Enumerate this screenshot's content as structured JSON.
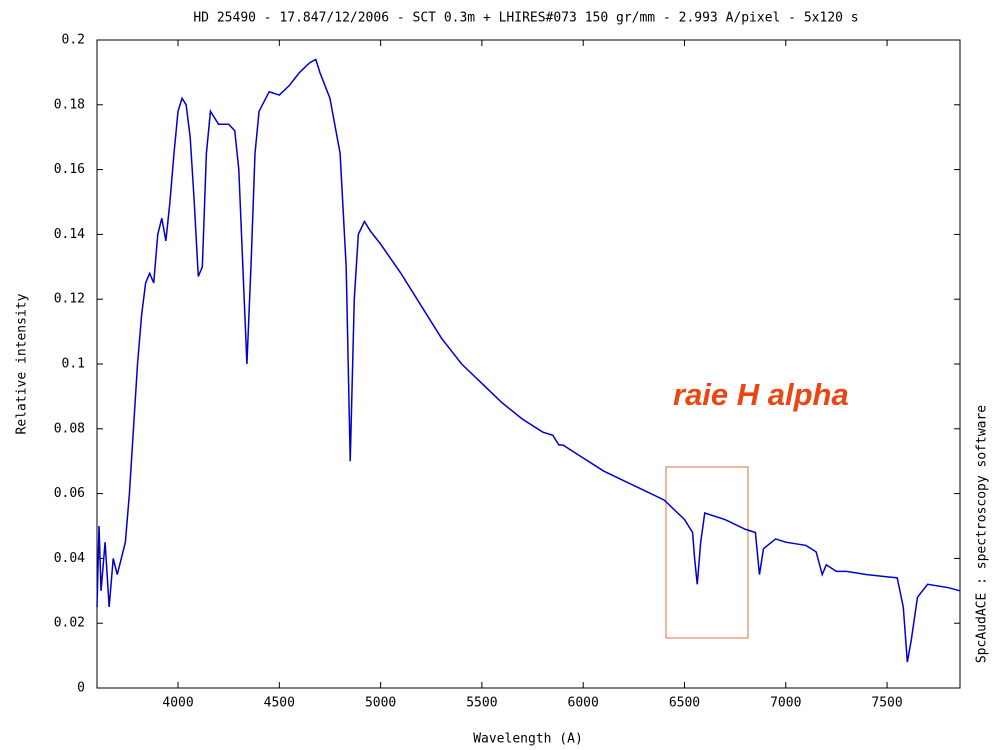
{
  "chart_data": {
    "type": "line",
    "title": "HD 25490 - 17.847/12/2006 - SCT 0.3m + LHIRES#073 150 gr/mm - 2.993 A/pixel - 5x120 s",
    "x_label": "Wavelength (A)",
    "y_label": "Relative intensity",
    "side_text": "SpcAudACE : spectroscopy software",
    "annotation": "raie H alpha",
    "color": "#0000cc",
    "x": [
      3600,
      3610,
      3620,
      3640,
      3660,
      3680,
      3700,
      3720,
      3740,
      3760,
      3780,
      3800,
      3820,
      3840,
      3860,
      3880,
      3900,
      3920,
      3940,
      3960,
      3980,
      4000,
      4020,
      4040,
      4060,
      4080,
      4100,
      4120,
      4140,
      4160,
      4180,
      4200,
      4250,
      4280,
      4300,
      4320,
      4340,
      4360,
      4380,
      4400,
      4450,
      4500,
      4550,
      4600,
      4650,
      4680,
      4700,
      4750,
      4800,
      4830,
      4850,
      4870,
      4890,
      4920,
      4950,
      5000,
      5100,
      5200,
      5300,
      5350,
      5400,
      5500,
      5600,
      5700,
      5800,
      5850,
      5880,
      5900,
      6000,
      6100,
      6200,
      6300,
      6400,
      6500,
      6540,
      6550,
      6563,
      6580,
      6600,
      6700,
      6800,
      6850,
      6870,
      6890,
      6950,
      7000,
      7100,
      7150,
      7180,
      7200,
      7250,
      7300,
      7400,
      7550,
      7580,
      7600,
      7620,
      7650,
      7700,
      7800,
      7860
    ],
    "values": [
      0.025,
      0.05,
      0.03,
      0.045,
      0.025,
      0.04,
      0.035,
      0.04,
      0.045,
      0.06,
      0.08,
      0.1,
      0.115,
      0.125,
      0.128,
      0.125,
      0.14,
      0.145,
      0.138,
      0.15,
      0.165,
      0.178,
      0.182,
      0.18,
      0.17,
      0.15,
      0.127,
      0.13,
      0.165,
      0.178,
      0.176,
      0.174,
      0.174,
      0.172,
      0.16,
      0.13,
      0.1,
      0.13,
      0.165,
      0.178,
      0.184,
      0.183,
      0.186,
      0.19,
      0.193,
      0.194,
      0.19,
      0.182,
      0.165,
      0.13,
      0.07,
      0.12,
      0.14,
      0.144,
      0.141,
      0.137,
      0.128,
      0.118,
      0.108,
      0.104,
      0.1,
      0.094,
      0.088,
      0.083,
      0.079,
      0.078,
      0.075,
      0.075,
      0.071,
      0.067,
      0.064,
      0.061,
      0.058,
      0.052,
      0.048,
      0.04,
      0.032,
      0.045,
      0.054,
      0.052,
      0.049,
      0.048,
      0.035,
      0.043,
      0.046,
      0.045,
      0.044,
      0.042,
      0.035,
      0.038,
      0.036,
      0.036,
      0.035,
      0.034,
      0.025,
      0.008,
      0.015,
      0.028,
      0.032,
      0.031,
      0.03
    ],
    "xlim": [
      3600,
      7860
    ],
    "ylim": [
      0,
      0.2
    ],
    "xticks": [
      4000,
      4500,
      5000,
      5500,
      6000,
      6500,
      7000,
      7500
    ],
    "yticks": [
      0,
      0.02,
      0.04,
      0.06,
      0.08,
      0.1,
      0.12,
      0.14,
      0.16,
      0.18,
      0.2
    ]
  }
}
